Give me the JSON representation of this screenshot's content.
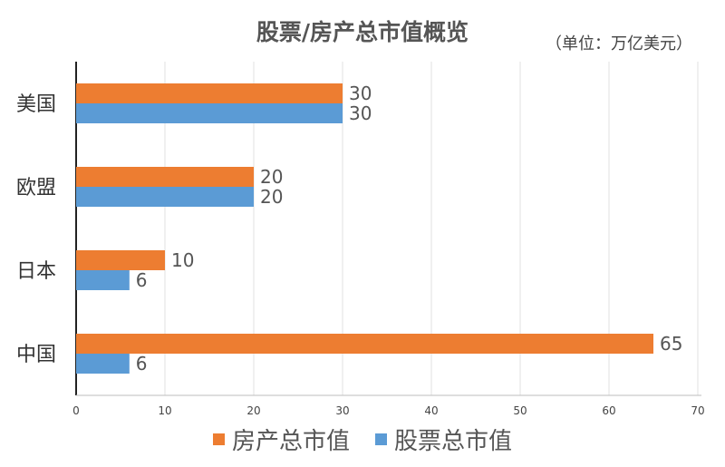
{
  "chart_data": {
    "type": "bar",
    "orientation": "horizontal",
    "title": "股票/房产总市值概览",
    "unit_note": "（单位：万亿美元）",
    "categories": [
      "美国",
      "欧盟",
      "日本",
      "中国"
    ],
    "series": [
      {
        "name": "房产总市值",
        "color": "#ED7D31",
        "values": [
          30,
          20,
          10,
          65
        ]
      },
      {
        "name": "股票总市值",
        "color": "#5B9BD5",
        "values": [
          30,
          20,
          6,
          6
        ]
      }
    ],
    "xlim": [
      0,
      70
    ],
    "xticks": [
      0,
      10,
      20,
      30,
      40,
      50,
      60,
      70
    ],
    "grid": true,
    "legend_position": "bottom",
    "data_labels": true
  }
}
